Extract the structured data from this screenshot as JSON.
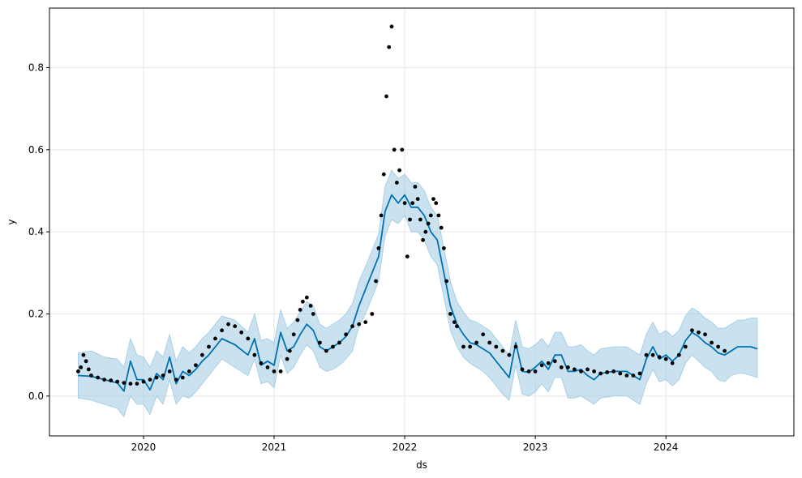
{
  "chart_data": {
    "type": "line",
    "title": "",
    "xlabel": "ds",
    "ylabel": "y",
    "xlim": [
      2019.28,
      2024.98
    ],
    "ylim": [
      -0.097,
      0.945
    ],
    "grid": true,
    "x_ticks": [
      {
        "value": 2020,
        "label": "2020"
      },
      {
        "value": 2021,
        "label": "2021"
      },
      {
        "value": 2022,
        "label": "2022"
      },
      {
        "value": 2023,
        "label": "2023"
      },
      {
        "value": 2024,
        "label": "2024"
      }
    ],
    "y_ticks": [
      {
        "value": 0.0,
        "label": "0.0"
      },
      {
        "value": 0.2,
        "label": "0.2"
      },
      {
        "value": 0.4,
        "label": "0.4"
      },
      {
        "value": 0.6,
        "label": "0.6"
      },
      {
        "value": 0.8,
        "label": "0.8"
      }
    ],
    "colors": {
      "forecast_line": "#0072B2",
      "interval_fill": "#9ECAE1",
      "observed_points": "#000000",
      "grid": "#e6e6e6"
    },
    "forecast": {
      "x": [
        2019.5,
        2019.6,
        2019.7,
        2019.8,
        2019.85,
        2019.9,
        2019.95,
        2020.0,
        2020.05,
        2020.1,
        2020.15,
        2020.2,
        2020.25,
        2020.3,
        2020.35,
        2020.4,
        2020.45,
        2020.5,
        2020.6,
        2020.7,
        2020.8,
        2020.85,
        2020.9,
        2020.95,
        2021.0,
        2021.05,
        2021.1,
        2021.15,
        2021.2,
        2021.25,
        2021.3,
        2021.35,
        2021.4,
        2021.45,
        2021.5,
        2021.55,
        2021.6,
        2021.65,
        2021.7,
        2021.75,
        2021.8,
        2021.85,
        2021.9,
        2021.95,
        2022.0,
        2022.05,
        2022.1,
        2022.15,
        2022.2,
        2022.25,
        2022.3,
        2022.35,
        2022.4,
        2022.45,
        2022.5,
        2022.55,
        2022.6,
        2022.65,
        2022.7,
        2022.75,
        2022.8,
        2022.85,
        2022.9,
        2022.95,
        2023.0,
        2023.05,
        2023.1,
        2023.15,
        2023.2,
        2023.25,
        2023.3,
        2023.35,
        2023.4,
        2023.45,
        2023.5,
        2023.6,
        2023.7,
        2023.8,
        2023.85,
        2023.9,
        2023.95,
        2024.0,
        2024.05,
        2024.1,
        2024.15,
        2024.2,
        2024.25,
        2024.3,
        2024.35,
        2024.4,
        2024.45,
        2024.5,
        2024.55,
        2024.6,
        2024.65,
        2024.7
      ],
      "yhat": [
        0.05,
        0.048,
        0.04,
        0.032,
        0.012,
        0.085,
        0.04,
        0.04,
        0.015,
        0.055,
        0.04,
        0.095,
        0.03,
        0.06,
        0.05,
        0.065,
        0.085,
        0.1,
        0.14,
        0.125,
        0.1,
        0.14,
        0.075,
        0.085,
        0.075,
        0.155,
        0.11,
        0.12,
        0.15,
        0.175,
        0.16,
        0.12,
        0.11,
        0.12,
        0.13,
        0.145,
        0.17,
        0.22,
        0.26,
        0.3,
        0.34,
        0.45,
        0.49,
        0.47,
        0.49,
        0.46,
        0.46,
        0.44,
        0.4,
        0.38,
        0.3,
        0.22,
        0.175,
        0.15,
        0.13,
        0.125,
        0.115,
        0.105,
        0.085,
        0.065,
        0.045,
        0.13,
        0.06,
        0.058,
        0.07,
        0.085,
        0.065,
        0.1,
        0.1,
        0.06,
        0.06,
        0.065,
        0.05,
        0.04,
        0.055,
        0.06,
        0.06,
        0.04,
        0.09,
        0.12,
        0.09,
        0.1,
        0.085,
        0.1,
        0.135,
        0.155,
        0.145,
        0.13,
        0.12,
        0.105,
        0.1,
        0.11,
        0.12,
        0.12,
        0.12,
        0.115
      ],
      "yhat_lower": [
        -0.005,
        -0.01,
        -0.02,
        -0.03,
        -0.05,
        0.0,
        -0.02,
        -0.02,
        -0.045,
        0.0,
        -0.02,
        0.04,
        -0.02,
        0.0,
        -0.005,
        0.01,
        0.03,
        0.05,
        0.09,
        0.07,
        0.05,
        0.09,
        0.03,
        0.035,
        0.02,
        0.1,
        0.055,
        0.07,
        0.1,
        0.125,
        0.11,
        0.07,
        0.06,
        0.065,
        0.075,
        0.09,
        0.11,
        0.17,
        0.2,
        0.24,
        0.28,
        0.39,
        0.43,
        0.42,
        0.44,
        0.4,
        0.4,
        0.38,
        0.34,
        0.32,
        0.24,
        0.16,
        0.12,
        0.095,
        0.08,
        0.07,
        0.06,
        0.045,
        0.025,
        0.005,
        -0.01,
        0.075,
        0.005,
        0.0,
        0.01,
        0.03,
        0.01,
        0.045,
        0.045,
        -0.005,
        -0.005,
        0.0,
        -0.01,
        -0.02,
        -0.005,
        0.0,
        0.0,
        -0.02,
        0.03,
        0.065,
        0.035,
        0.04,
        0.025,
        0.04,
        0.08,
        0.1,
        0.085,
        0.07,
        0.06,
        0.04,
        0.035,
        0.05,
        0.055,
        0.055,
        0.05,
        0.045
      ],
      "yhat_upper": [
        0.105,
        0.11,
        0.095,
        0.09,
        0.07,
        0.14,
        0.1,
        0.095,
        0.07,
        0.11,
        0.095,
        0.15,
        0.085,
        0.12,
        0.105,
        0.12,
        0.14,
        0.155,
        0.195,
        0.185,
        0.155,
        0.2,
        0.135,
        0.14,
        0.13,
        0.21,
        0.165,
        0.18,
        0.205,
        0.23,
        0.22,
        0.175,
        0.165,
        0.175,
        0.185,
        0.2,
        0.225,
        0.28,
        0.315,
        0.355,
        0.395,
        0.51,
        0.55,
        0.53,
        0.54,
        0.52,
        0.52,
        0.5,
        0.46,
        0.44,
        0.36,
        0.28,
        0.23,
        0.205,
        0.185,
        0.18,
        0.17,
        0.16,
        0.14,
        0.12,
        0.1,
        0.185,
        0.12,
        0.115,
        0.125,
        0.14,
        0.12,
        0.155,
        0.155,
        0.12,
        0.12,
        0.125,
        0.11,
        0.1,
        0.115,
        0.12,
        0.12,
        0.1,
        0.15,
        0.18,
        0.15,
        0.16,
        0.145,
        0.16,
        0.195,
        0.215,
        0.205,
        0.19,
        0.18,
        0.165,
        0.165,
        0.175,
        0.185,
        0.185,
        0.19,
        0.19
      ]
    },
    "observed": {
      "x": [
        2019.5,
        2019.52,
        2019.54,
        2019.56,
        2019.58,
        2019.6,
        2019.65,
        2019.7,
        2019.75,
        2019.8,
        2019.85,
        2019.9,
        2019.95,
        2020.0,
        2020.05,
        2020.1,
        2020.15,
        2020.2,
        2020.25,
        2020.3,
        2020.35,
        2020.4,
        2020.45,
        2020.5,
        2020.55,
        2020.6,
        2020.65,
        2020.7,
        2020.75,
        2020.8,
        2020.85,
        2020.9,
        2020.95,
        2021.0,
        2021.05,
        2021.1,
        2021.12,
        2021.15,
        2021.18,
        2021.2,
        2021.22,
        2021.25,
        2021.28,
        2021.3,
        2021.35,
        2021.4,
        2021.45,
        2021.5,
        2021.55,
        2021.6,
        2021.65,
        2021.7,
        2021.75,
        2021.78,
        2021.8,
        2021.82,
        2021.84,
        2021.86,
        2021.88,
        2021.9,
        2021.92,
        2021.94,
        2021.96,
        2021.98,
        2022.0,
        2022.02,
        2022.04,
        2022.06,
        2022.08,
        2022.1,
        2022.12,
        2022.14,
        2022.16,
        2022.18,
        2022.2,
        2022.22,
        2022.24,
        2022.26,
        2022.28,
        2022.3,
        2022.32,
        2022.35,
        2022.38,
        2022.4,
        2022.45,
        2022.5,
        2022.55,
        2022.6,
        2022.65,
        2022.7,
        2022.75,
        2022.8,
        2022.85,
        2022.9,
        2022.95,
        2023.0,
        2023.05,
        2023.1,
        2023.15,
        2023.2,
        2023.25,
        2023.3,
        2023.35,
        2023.4,
        2023.45,
        2023.5,
        2023.55,
        2023.6,
        2023.65,
        2023.7,
        2023.75,
        2023.8,
        2023.85,
        2023.9,
        2023.95,
        2024.0,
        2024.05,
        2024.1,
        2024.15,
        2024.2,
        2024.25,
        2024.3,
        2024.35,
        2024.4,
        2024.45
      ],
      "y": [
        0.06,
        0.07,
        0.1,
        0.085,
        0.065,
        0.05,
        0.045,
        0.04,
        0.038,
        0.035,
        0.032,
        0.03,
        0.03,
        0.035,
        0.04,
        0.045,
        0.05,
        0.06,
        0.04,
        0.045,
        0.06,
        0.075,
        0.1,
        0.12,
        0.14,
        0.16,
        0.175,
        0.17,
        0.155,
        0.14,
        0.1,
        0.08,
        0.07,
        0.06,
        0.06,
        0.09,
        0.11,
        0.15,
        0.185,
        0.21,
        0.23,
        0.24,
        0.22,
        0.2,
        0.13,
        0.11,
        0.12,
        0.13,
        0.15,
        0.17,
        0.175,
        0.18,
        0.2,
        0.28,
        0.36,
        0.44,
        0.54,
        0.73,
        0.85,
        0.9,
        0.6,
        0.52,
        0.55,
        0.6,
        0.47,
        0.34,
        0.43,
        0.47,
        0.51,
        0.48,
        0.43,
        0.38,
        0.4,
        0.42,
        0.44,
        0.48,
        0.47,
        0.44,
        0.41,
        0.36,
        0.28,
        0.2,
        0.18,
        0.17,
        0.12,
        0.12,
        0.13,
        0.15,
        0.13,
        0.12,
        0.11,
        0.1,
        0.12,
        0.065,
        0.06,
        0.06,
        0.075,
        0.08,
        0.085,
        0.07,
        0.07,
        0.065,
        0.06,
        0.065,
        0.06,
        0.055,
        0.058,
        0.06,
        0.055,
        0.05,
        0.05,
        0.055,
        0.1,
        0.1,
        0.095,
        0.09,
        0.08,
        0.1,
        0.12,
        0.16,
        0.155,
        0.15,
        0.13,
        0.12,
        0.11
      ]
    }
  }
}
